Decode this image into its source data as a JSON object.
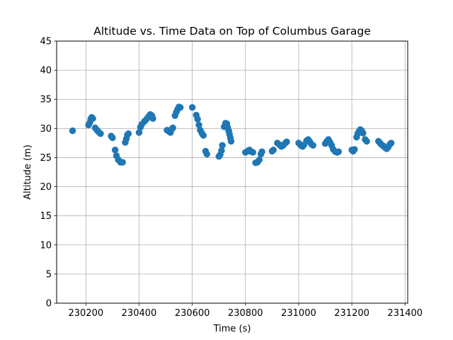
{
  "chart_data": {
    "type": "scatter",
    "title": "Altitude vs. Time Data on Top of Columbus Garage",
    "xlabel": "Time (s)",
    "ylabel": "Altitude (m)",
    "xlim": [
      230090,
      231410
    ],
    "ylim": [
      0,
      45
    ],
    "xticks": [
      230200,
      230400,
      230600,
      230800,
      231000,
      231200,
      231400
    ],
    "yticks": [
      0,
      5,
      10,
      15,
      20,
      25,
      30,
      35,
      40,
      45
    ],
    "grid": true,
    "marker_color": "#1f77b4",
    "series": [
      {
        "points": [
          [
            230150,
            29.6
          ],
          [
            230210,
            30.6
          ],
          [
            230215,
            31.0
          ],
          [
            230218,
            31.6
          ],
          [
            230222,
            31.9
          ],
          [
            230226,
            31.7
          ],
          [
            230235,
            30.1
          ],
          [
            230242,
            29.7
          ],
          [
            230248,
            29.4
          ],
          [
            230255,
            29.1
          ],
          [
            230295,
            28.7
          ],
          [
            230300,
            28.4
          ],
          [
            230310,
            26.3
          ],
          [
            230315,
            25.3
          ],
          [
            230322,
            24.6
          ],
          [
            230330,
            24.2
          ],
          [
            230338,
            24.2
          ],
          [
            230348,
            27.6
          ],
          [
            230352,
            28.2
          ],
          [
            230356,
            28.9
          ],
          [
            230360,
            29.1
          ],
          [
            230400,
            29.3
          ],
          [
            230405,
            30.2
          ],
          [
            230410,
            30.7
          ],
          [
            230420,
            31.2
          ],
          [
            230428,
            31.6
          ],
          [
            230435,
            32.0
          ],
          [
            230442,
            32.4
          ],
          [
            230448,
            32.2
          ],
          [
            230452,
            31.7
          ],
          [
            230505,
            29.7
          ],
          [
            230512,
            29.5
          ],
          [
            230518,
            29.3
          ],
          [
            230523,
            29.9
          ],
          [
            230527,
            30.1
          ],
          [
            230535,
            32.2
          ],
          [
            230540,
            32.8
          ],
          [
            230545,
            33.3
          ],
          [
            230550,
            33.7
          ],
          [
            230555,
            33.6
          ],
          [
            230600,
            33.6
          ],
          [
            230615,
            32.3
          ],
          [
            230620,
            31.6
          ],
          [
            230625,
            30.6
          ],
          [
            230630,
            29.7
          ],
          [
            230636,
            29.2
          ],
          [
            230642,
            28.8
          ],
          [
            230650,
            26.1
          ],
          [
            230655,
            25.6
          ],
          [
            230700,
            25.2
          ],
          [
            230705,
            25.5
          ],
          [
            230710,
            26.2
          ],
          [
            230713,
            27.1
          ],
          [
            230720,
            30.3
          ],
          [
            230725,
            30.9
          ],
          [
            230730,
            30.8
          ],
          [
            230733,
            30.2
          ],
          [
            230737,
            29.6
          ],
          [
            230740,
            29.0
          ],
          [
            230743,
            28.4
          ],
          [
            230746,
            27.8
          ],
          [
            230800,
            25.9
          ],
          [
            230808,
            26.1
          ],
          [
            230815,
            26.3
          ],
          [
            230822,
            26.0
          ],
          [
            230828,
            25.9
          ],
          [
            230838,
            24.1
          ],
          [
            230845,
            24.2
          ],
          [
            230852,
            24.6
          ],
          [
            230858,
            25.6
          ],
          [
            230862,
            26.0
          ],
          [
            230900,
            26.1
          ],
          [
            230905,
            26.3
          ],
          [
            230920,
            27.5
          ],
          [
            230928,
            27.2
          ],
          [
            230935,
            26.9
          ],
          [
            230942,
            27.1
          ],
          [
            230950,
            27.5
          ],
          [
            230955,
            27.7
          ],
          [
            231000,
            27.5
          ],
          [
            231008,
            27.1
          ],
          [
            231015,
            26.9
          ],
          [
            231020,
            27.2
          ],
          [
            231030,
            27.9
          ],
          [
            231036,
            28.1
          ],
          [
            231042,
            27.7
          ],
          [
            231048,
            27.3
          ],
          [
            231054,
            27.1
          ],
          [
            231100,
            27.4
          ],
          [
            231106,
            27.8
          ],
          [
            231112,
            28.1
          ],
          [
            231118,
            27.6
          ],
          [
            231124,
            27.1
          ],
          [
            231130,
            26.4
          ],
          [
            231138,
            26.0
          ],
          [
            231145,
            25.9
          ],
          [
            231150,
            26.0
          ],
          [
            231200,
            26.3
          ],
          [
            231205,
            26.1
          ],
          [
            231210,
            26.4
          ],
          [
            231218,
            28.5
          ],
          [
            231222,
            29.1
          ],
          [
            231227,
            29.5
          ],
          [
            231232,
            29.8
          ],
          [
            231237,
            29.6
          ],
          [
            231242,
            29.2
          ],
          [
            231250,
            28.1
          ],
          [
            231256,
            27.8
          ],
          [
            231300,
            27.8
          ],
          [
            231306,
            27.5
          ],
          [
            231312,
            27.2
          ],
          [
            231318,
            27.0
          ],
          [
            231325,
            26.7
          ],
          [
            231331,
            26.5
          ],
          [
            231337,
            26.8
          ],
          [
            231343,
            27.3
          ],
          [
            231348,
            27.5
          ]
        ]
      }
    ]
  }
}
